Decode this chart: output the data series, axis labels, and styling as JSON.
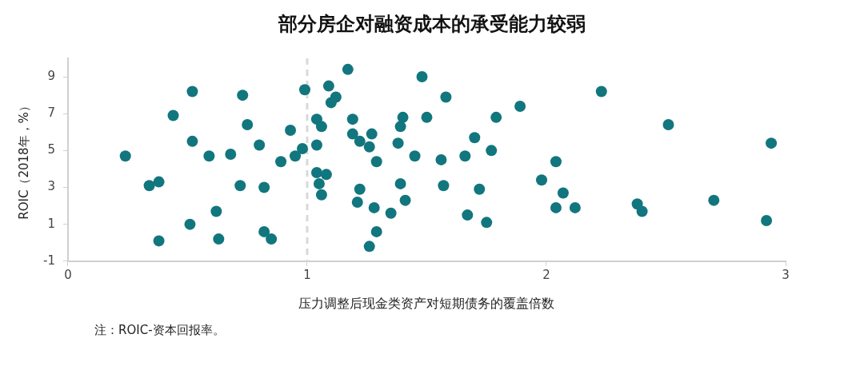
{
  "chart_data": {
    "type": "scatter",
    "title": "部分房企对融资成本的承受能力较弱",
    "xlabel": "压力调整后现金类资产对短期债务的覆盖倍数",
    "ylabel": "ROIC（2018年，%）",
    "annotations": [
      "注：ROIC-资本回报率。"
    ],
    "x": [
      0.24,
      0.34,
      0.38,
      0.44,
      0.52,
      0.52,
      0.51,
      0.38,
      0.62,
      0.59,
      0.63,
      0.73,
      0.75,
      0.68,
      0.8,
      0.72,
      0.82,
      0.82,
      0.85,
      0.89,
      0.95,
      0.98,
      0.93,
      0.99,
      1.09,
      1.17,
      1.12,
      1.1,
      1.04,
      1.06,
      1.04,
      1.04,
      1.08,
      1.05,
      1.06,
      1.19,
      1.19,
      1.22,
      1.27,
      1.26,
      1.29,
      1.22,
      1.21,
      1.28,
      1.29,
      1.26,
      1.35,
      1.4,
      1.39,
      1.38,
      1.45,
      1.39,
      1.41,
      1.48,
      1.5,
      1.58,
      1.56,
      1.57,
      1.66,
      1.7,
      1.77,
      1.79,
      1.72,
      1.67,
      1.75,
      1.89,
      1.98,
      2.04,
      2.04,
      2.07,
      2.12,
      2.23,
      2.51,
      2.38,
      2.4,
      2.7,
      2.94,
      2.92
    ],
    "series": [
      {
        "color": "#12767e",
        "values": [
          4.7,
          3.1,
          3.3,
          6.9,
          8.2,
          5.5,
          1.0,
          0.1,
          1.7,
          4.7,
          0.2,
          8.0,
          6.4,
          4.8,
          5.3,
          3.1,
          3.0,
          0.6,
          0.2,
          4.4,
          4.7,
          5.1,
          6.1,
          8.3,
          8.5,
          9.4,
          7.9,
          7.6,
          6.7,
          6.3,
          5.3,
          3.8,
          3.7,
          3.2,
          2.6,
          6.7,
          5.9,
          5.5,
          5.9,
          5.2,
          4.4,
          2.9,
          2.2,
          1.9,
          0.6,
          -0.2,
          1.6,
          6.8,
          6.3,
          5.4,
          4.7,
          3.2,
          2.3,
          9.0,
          6.8,
          7.9,
          4.5,
          3.1,
          4.7,
          5.7,
          5.0,
          6.8,
          2.9,
          1.5,
          1.1,
          7.4,
          3.4,
          4.4,
          1.9,
          2.7,
          1.9,
          8.2,
          6.4,
          2.1,
          1.7,
          2.3,
          5.4,
          1.2
        ]
      }
    ],
    "xlim": [
      0,
      3
    ],
    "ylim": [
      -1,
      10
    ],
    "xticks": [
      0,
      1,
      2,
      3
    ],
    "yticks": [
      -1,
      1,
      3,
      5,
      7,
      9
    ],
    "grid": false,
    "legend": false,
    "marker": "circle",
    "ref_lines": [
      {
        "axis": "x",
        "value": 1,
        "color": "#d9d9d9",
        "line_style": "dashed"
      }
    ]
  }
}
